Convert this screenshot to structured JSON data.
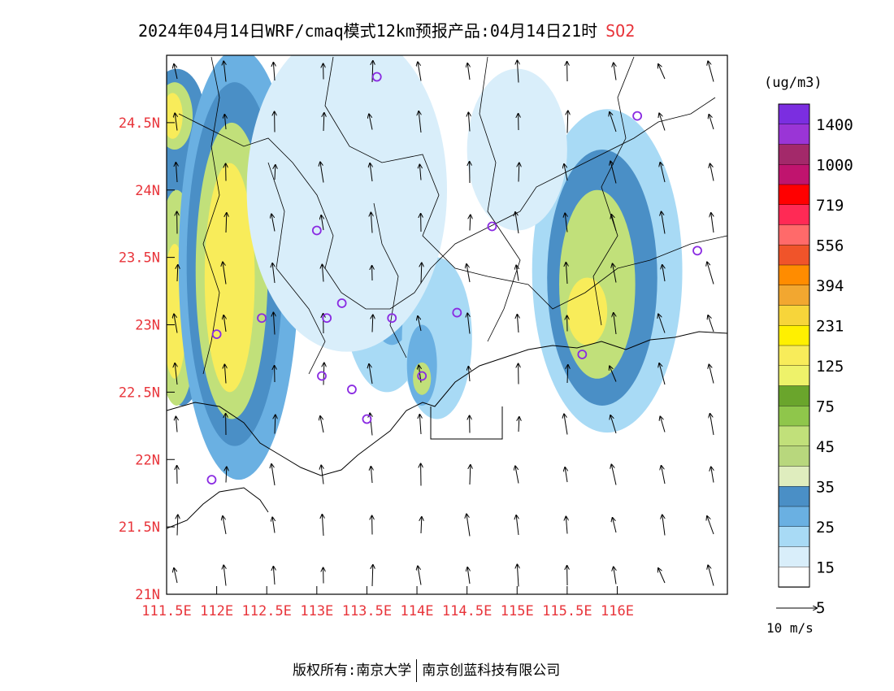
{
  "title": {
    "text": "2024年04月14日WRF/cmaq模式12km预报产品:04月14日21时",
    "species": "SO2"
  },
  "axes": {
    "lon_labels": [
      "111.5E",
      "112E",
      "112.5E",
      "113E",
      "113.5E",
      "114E",
      "114.5E",
      "115E",
      "115.5E",
      "116E"
    ],
    "lon_values": [
      111.5,
      112,
      112.5,
      113,
      113.5,
      114,
      114.5,
      115,
      115.5,
      116
    ],
    "lat_labels": [
      "24.5N",
      "24N",
      "23.5N",
      "23N",
      "22.5N",
      "22N",
      "21.5N",
      "21N"
    ],
    "lat_values": [
      24.5,
      24,
      23.5,
      23,
      22.5,
      22,
      21.5,
      21
    ],
    "lon_range": [
      111.5,
      117.1
    ],
    "lat_range": [
      21.0,
      25.0
    ],
    "label_color": "#e8343a"
  },
  "colorbar": {
    "unit": "(ug/m3)",
    "labels": [
      "1400",
      "1000",
      "719",
      "556",
      "394",
      "231",
      "125",
      "75",
      "45",
      "35",
      "25",
      "15",
      "5"
    ],
    "colors": [
      "#7b2ee0",
      "#9a35d6",
      "#a3296a",
      "#c0146e",
      "#ff0000",
      "#ff2a55",
      "#ff6a6a",
      "#f0542a",
      "#ff8c00",
      "#f2a730",
      "#f7d53a",
      "#fff000",
      "#f8ec5a",
      "#eef26a",
      "#6aa52c",
      "#8fc64b",
      "#c1e07a",
      "#b8d77d",
      "#dfedbe",
      "#4a8fc6",
      "#6ab0e2",
      "#a8daf5",
      "#d9eefa",
      "#ffffff"
    ]
  },
  "wind_scale": {
    "label": "10 m/s"
  },
  "footer": {
    "left": "版权所有:南京大学",
    "right": "南京创蓝科技有限公司"
  },
  "stations": [
    [
      112.0,
      22.93
    ],
    [
      112.45,
      23.05
    ],
    [
      113.0,
      23.7
    ],
    [
      113.1,
      23.05
    ],
    [
      113.25,
      23.16
    ],
    [
      113.05,
      22.62
    ],
    [
      113.35,
      22.52
    ],
    [
      113.5,
      22.3
    ],
    [
      113.75,
      23.05
    ],
    [
      114.05,
      22.62
    ],
    [
      114.4,
      23.09
    ],
    [
      114.75,
      23.73
    ],
    [
      113.6,
      24.84
    ],
    [
      111.95,
      21.85
    ],
    [
      115.65,
      22.78
    ],
    [
      116.2,
      24.55
    ],
    [
      116.8,
      23.55
    ]
  ],
  "plumes": [
    {
      "lon": 111.65,
      "lat": 23.5,
      "rlon": 0.35,
      "rlat": 1.1,
      "color": "#4a8fc6"
    },
    {
      "lon": 111.6,
      "lat": 23.2,
      "rlon": 0.22,
      "rlat": 0.8,
      "color": "#c1e07a"
    },
    {
      "lon": 111.58,
      "lat": 23.1,
      "rlon": 0.12,
      "rlat": 0.5,
      "color": "#f8ec5a"
    },
    {
      "lon": 111.6,
      "lat": 24.55,
      "rlon": 0.28,
      "rlat": 0.35,
      "color": "#4a8fc6"
    },
    {
      "lon": 111.58,
      "lat": 24.55,
      "rlon": 0.18,
      "rlat": 0.25,
      "color": "#c1e07a"
    },
    {
      "lon": 111.56,
      "lat": 24.55,
      "rlon": 0.1,
      "rlat": 0.17,
      "color": "#f8ec5a"
    },
    {
      "lon": 112.22,
      "lat": 23.45,
      "rlon": 0.6,
      "rlat": 1.6,
      "color": "#6ab0e2"
    },
    {
      "lon": 112.18,
      "lat": 23.45,
      "rlon": 0.48,
      "rlat": 1.35,
      "color": "#4a8fc6"
    },
    {
      "lon": 112.15,
      "lat": 23.4,
      "rlon": 0.36,
      "rlat": 1.1,
      "color": "#c1e07a"
    },
    {
      "lon": 112.13,
      "lat": 23.35,
      "rlon": 0.25,
      "rlat": 0.85,
      "color": "#f8ec5a"
    },
    {
      "lon": 113.7,
      "lat": 23.3,
      "rlon": 0.45,
      "rlat": 0.8,
      "color": "#a8daf5"
    },
    {
      "lon": 113.75,
      "lat": 23.3,
      "rlon": 0.25,
      "rlat": 0.45,
      "color": "#6ab0e2"
    },
    {
      "lon": 114.2,
      "lat": 22.9,
      "rlon": 0.35,
      "rlat": 0.6,
      "color": "#a8daf5"
    },
    {
      "lon": 114.05,
      "lat": 22.7,
      "rlon": 0.15,
      "rlat": 0.3,
      "color": "#6ab0e2"
    },
    {
      "lon": 114.05,
      "lat": 22.6,
      "rlon": 0.09,
      "rlat": 0.12,
      "color": "#c1e07a"
    },
    {
      "lon": 113.65,
      "lat": 24.85,
      "rlon": 0.18,
      "rlat": 0.15,
      "color": "#6ab0e2"
    },
    {
      "lon": 115.9,
      "lat": 23.4,
      "rlon": 0.75,
      "rlat": 1.2,
      "color": "#a8daf5"
    },
    {
      "lon": 115.85,
      "lat": 23.35,
      "rlon": 0.55,
      "rlat": 0.95,
      "color": "#4a8fc6"
    },
    {
      "lon": 115.8,
      "lat": 23.3,
      "rlon": 0.38,
      "rlat": 0.7,
      "color": "#c1e07a"
    },
    {
      "lon": 115.7,
      "lat": 23.1,
      "rlon": 0.2,
      "rlat": 0.25,
      "color": "#f8ec5a"
    },
    {
      "lon": 115.0,
      "lat": 24.3,
      "rlon": 0.5,
      "rlat": 0.6,
      "color": "#d9eefa"
    },
    {
      "lon": 113.3,
      "lat": 24.0,
      "rlon": 1.0,
      "rlat": 1.2,
      "color": "#d9eefa"
    }
  ]
}
